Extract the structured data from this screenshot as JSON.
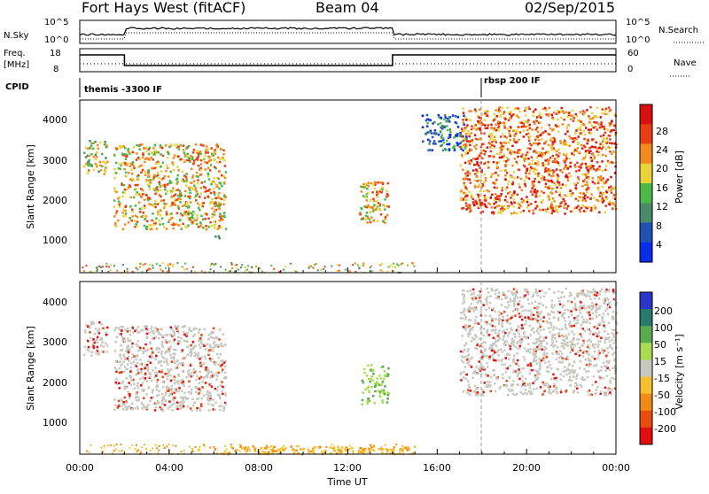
{
  "header": {
    "station": "Fort Hays West (fitACF)",
    "beam": "Beam 04",
    "date": "02/Sep/2015"
  },
  "strips": {
    "nsky_label": "N.Sky",
    "nsky_ticks": [
      "10^5",
      "10^0"
    ],
    "nsearch_label": "N.Search",
    "nsearch_ticks": [
      "10^5",
      "10^0"
    ],
    "freq_label": "Freq.",
    "freq_unit": "[MHz]",
    "freq_ticks": [
      "18",
      "8"
    ],
    "nave_label": "Nave",
    "nave_ticks": [
      "60",
      "0"
    ],
    "cpid_label": "CPID",
    "cpid_segments": [
      "themis -3300 IF",
      "rbsp 200 IF"
    ]
  },
  "axes": {
    "ylabel": "Slant Range [km]",
    "xlabel": "Time UT",
    "yticks": [
      "1000",
      "2000",
      "3000",
      "4000"
    ],
    "xticks": [
      "00:00",
      "04:00",
      "08:00",
      "12:00",
      "16:00",
      "20:00",
      "00:00"
    ]
  },
  "power_scale": {
    "label": "Power [dB]",
    "ticks": [
      "4",
      "8",
      "12",
      "16",
      "20",
      "24",
      "28"
    ],
    "colors": [
      "#0a2ee8",
      "#2050b4",
      "#4a8a6a",
      "#4cb848",
      "#e8d43a",
      "#f28a1e",
      "#e83e14",
      "#d81010"
    ]
  },
  "velocity_scale": {
    "label": "Velocity [m s⁻¹]",
    "ticks": [
      "200",
      "100",
      "50",
      "15",
      "-15",
      "-50",
      "-100",
      "-200"
    ],
    "colors": [
      "#2a36c8",
      "#2a7a6c",
      "#5aaa50",
      "#a8dc50",
      "#c8c8c0",
      "#f6c030",
      "#f08a18",
      "#e84a10",
      "#e01010"
    ]
  },
  "chart_data": {
    "type": "heatmap",
    "title": "Fort Hays West (fitACF)",
    "xlabel": "Time UT",
    "ylabel": "Slant Range [km]",
    "xlim": [
      0,
      24
    ],
    "ylim": [
      180,
      4550
    ],
    "freq_segments": [
      {
        "start": 0.0,
        "end": 2.0,
        "freq_mhz": 16
      },
      {
        "start": 2.0,
        "end": 14.0,
        "freq_mhz": 10
      },
      {
        "start": 14.0,
        "end": 24.0,
        "freq_mhz": 16
      }
    ],
    "cpid_change_hour": 18.0,
    "power_regions": [
      {
        "t0": 0.1,
        "t1": 1.2,
        "r_top": 3550,
        "r_bot": 2700,
        "power_db": 16
      },
      {
        "t0": 1.5,
        "t1": 6.5,
        "r_top": 3450,
        "r_bot": 1300,
        "power_db": 20
      },
      {
        "t0": 6.0,
        "t1": 6.3,
        "r_top": 1200,
        "r_bot": 1000,
        "power_db": 10
      },
      {
        "t0": 12.5,
        "t1": 13.8,
        "r_top": 2500,
        "r_bot": 1450,
        "power_db": 18
      },
      {
        "t0": 15.3,
        "t1": 17.3,
        "r_top": 4200,
        "r_bot": 3300,
        "power_db": 6
      },
      {
        "t0": 17.0,
        "t1": 24.0,
        "r_top": 4400,
        "r_bot": 1700,
        "power_db": 24
      }
    ],
    "velocity_regions": [
      {
        "t0": 0.1,
        "t1": 1.2,
        "r_top": 3550,
        "r_bot": 2700,
        "velocity": 0
      },
      {
        "t0": 1.5,
        "t1": 6.5,
        "r_top": 3450,
        "r_bot": 1300,
        "velocity": 0
      },
      {
        "t0": 12.5,
        "t1": 13.8,
        "r_top": 2500,
        "r_bot": 1450,
        "velocity": 40
      },
      {
        "t0": 6.0,
        "t1": 15.0,
        "r_top": 400,
        "r_bot": 200,
        "velocity": -60
      },
      {
        "t0": 17.0,
        "t1": 24.0,
        "r_top": 4400,
        "r_bot": 1700,
        "velocity": 0
      }
    ]
  }
}
